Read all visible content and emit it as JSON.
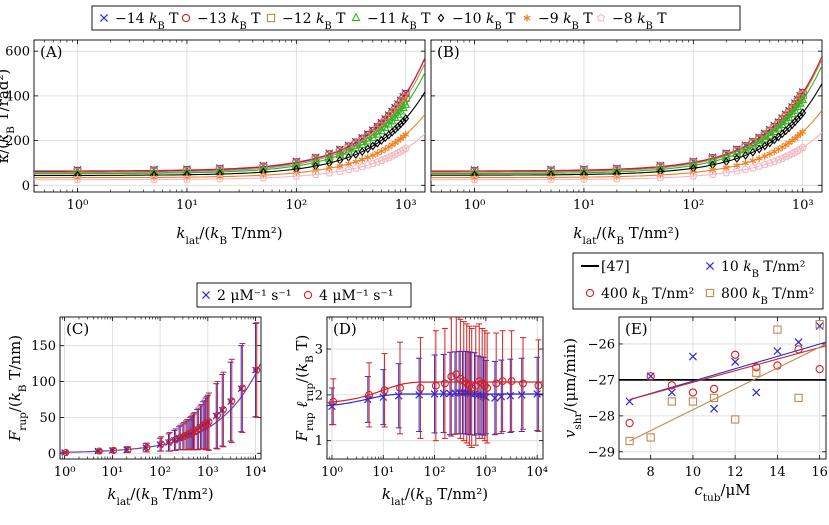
{
  "chart_data": [
    {
      "id": "A",
      "type": "line",
      "panel_label": "(A)",
      "xscale": "log",
      "xlim": [
        0.4,
        1500
      ],
      "ylim": [
        -30,
        650
      ],
      "xticks": [
        1,
        10,
        100,
        1000
      ],
      "xtick_labels": [
        "10⁰",
        "10¹",
        "10²",
        "10³"
      ],
      "yticks": [
        0,
        200,
        400,
        600
      ],
      "ytick_labels": [
        "0",
        "200",
        "400",
        "600"
      ],
      "xlabel": "k_lat/(k_B T/nm²)",
      "ylabel": "κ/(k_B T/rad²)",
      "x": [
        1,
        5,
        10,
        20,
        50,
        100,
        150,
        200,
        250,
        300,
        350,
        400,
        450,
        500,
        550,
        600,
        650,
        700,
        750,
        800,
        850,
        900,
        950,
        1000
      ],
      "series": [
        {
          "name": "−14 k_B T",
          "amp": 84,
          "k0": 400,
          "base": 70,
          "offset": 14,
          "marker": "x",
          "color": "#2b2bd6"
        },
        {
          "name": "−13 k_B T",
          "amp": 84,
          "k0": 400,
          "base": 72,
          "offset": 0,
          "marker": "o",
          "color": "#d62020"
        },
        {
          "name": "−12 k_B T",
          "amp": 81,
          "k0": 400,
          "base": 65,
          "offset": 4,
          "marker": "s",
          "color": "#c08a50"
        },
        {
          "name": "−11 k_B T",
          "amp": 75,
          "k0": 400,
          "base": 60,
          "offset": 0,
          "marker": "^",
          "color": "#22bb22"
        },
        {
          "name": "−10 k_B T",
          "amp": 62,
          "k0": 400,
          "base": 52,
          "offset": 0,
          "marker": "d",
          "color": "#000000"
        },
        {
          "name": "−9 k_B T",
          "amp": 47,
          "k0": 400,
          "base": 42,
          "offset": 0,
          "marker": "*",
          "color": "#f08020"
        },
        {
          "name": "−8 k_B T",
          "amp": 34,
          "k0": 400,
          "base": 33,
          "offset": 0,
          "marker": "p",
          "color": "#f4b8c4"
        }
      ]
    },
    {
      "id": "B",
      "type": "line",
      "panel_label": "(B)",
      "xscale": "log",
      "xlim": [
        0.4,
        1500
      ],
      "ylim": [
        -30,
        650
      ],
      "xticks": [
        1,
        10,
        100,
        1000
      ],
      "xtick_labels": [
        "10⁰",
        "10¹",
        "10²",
        "10³"
      ],
      "yticks": [
        0,
        200,
        400,
        600
      ],
      "ytick_labels": [
        "",
        "",
        "",
        ""
      ],
      "xlabel": "k_lat/(k_B T/nm²)",
      "x": [
        1,
        5,
        10,
        20,
        50,
        100,
        150,
        200,
        250,
        300,
        350,
        400,
        450,
        500,
        550,
        600,
        650,
        700,
        750,
        800,
        850,
        900,
        950,
        1000
      ],
      "series": [
        {
          "name": "−14 k_B T",
          "amp": 85,
          "k0": 400,
          "base": 70,
          "offset": 14,
          "marker": "x",
          "color": "#2b2bd6"
        },
        {
          "name": "−13 k_B T",
          "amp": 85,
          "k0": 400,
          "base": 72,
          "offset": 0,
          "marker": "o",
          "color": "#d62020"
        },
        {
          "name": "−12 k_B T",
          "amp": 84,
          "k0": 400,
          "base": 66,
          "offset": 4,
          "marker": "s",
          "color": "#c08a50"
        },
        {
          "name": "−11 k_B T",
          "amp": 80,
          "k0": 400,
          "base": 60,
          "offset": 0,
          "marker": "^",
          "color": "#22bb22"
        },
        {
          "name": "−10 k_B T",
          "amp": 68,
          "k0": 400,
          "base": 53,
          "offset": 0,
          "marker": "d",
          "color": "#000000"
        },
        {
          "name": "−9 k_B T",
          "amp": 50,
          "k0": 400,
          "base": 42,
          "offset": 0,
          "marker": "*",
          "color": "#f08020"
        },
        {
          "name": "−8 k_B T",
          "amp": 35,
          "k0": 400,
          "base": 33,
          "offset": 0,
          "marker": "p",
          "color": "#f4b8c4"
        }
      ]
    },
    {
      "id": "C",
      "type": "line",
      "panel_label": "(C)",
      "xscale": "log",
      "xlim": [
        0.8,
        13000
      ],
      "ylim": [
        -8,
        190
      ],
      "xticks": [
        1,
        10,
        100,
        1000,
        10000
      ],
      "xtick_labels": [
        "10⁰",
        "10¹",
        "10²",
        "10³",
        "10⁴"
      ],
      "yticks": [
        0,
        50,
        100,
        150
      ],
      "ytick_labels": [
        "0",
        "50",
        "100",
        "150"
      ],
      "xlabel": "k_lat/(k_B T/nm²)",
      "ylabel": "F_rup/(k_B T/nm)",
      "x": [
        1,
        5,
        10,
        20,
        50,
        100,
        150,
        200,
        250,
        300,
        350,
        400,
        450,
        500,
        600,
        700,
        800,
        900,
        1000,
        1500,
        2000,
        3000,
        5000,
        10000
      ],
      "series": [
        {
          "name": "2 μM⁻¹ s⁻¹",
          "marker": "x",
          "color": "#2b2bd6",
          "y": [
            1,
            3,
            4,
            5,
            8,
            12,
            15,
            18,
            21,
            23,
            25,
            26,
            28,
            30,
            33,
            36,
            39,
            41,
            43,
            52,
            60,
            72,
            90,
            116
          ],
          "err": [
            1,
            2,
            3,
            4,
            6,
            9,
            12,
            14,
            16,
            18,
            20,
            21,
            23,
            25,
            28,
            30,
            33,
            36,
            38,
            45,
            50,
            55,
            60,
            65
          ]
        },
        {
          "name": "4 μM⁻¹ s⁻¹",
          "marker": "o",
          "color": "#d62020",
          "y": [
            1,
            3,
            4,
            5,
            8,
            13,
            16,
            19,
            22,
            24,
            26,
            28,
            29,
            31,
            34,
            37,
            40,
            42,
            44,
            53,
            61,
            73,
            91,
            116
          ],
          "err": [
            1,
            2,
            3,
            4,
            6,
            10,
            13,
            15,
            17,
            19,
            21,
            22,
            24,
            26,
            29,
            31,
            34,
            37,
            40,
            47,
            52,
            58,
            62,
            66
          ]
        }
      ],
      "curve": {
        "a": 10,
        "b": 40,
        "color": "#7a3fa0"
      }
    },
    {
      "id": "D",
      "type": "line",
      "panel_label": "(D)",
      "xscale": "log",
      "xlim": [
        0.8,
        13000
      ],
      "ylim": [
        0.6,
        3.7
      ],
      "xticks": [
        1,
        10,
        100,
        1000,
        10000
      ],
      "xtick_labels": [
        "10⁰",
        "10¹",
        "10²",
        "10³",
        "10⁴"
      ],
      "yticks": [
        1,
        2,
        3
      ],
      "ytick_labels": [
        "1",
        "2",
        "3"
      ],
      "xlabel": "k_lat/(k_B T/nm²)",
      "ylabel": "F_rup ℓ_rup/(k_B T)",
      "x": [
        1,
        5,
        10,
        20,
        50,
        100,
        150,
        200,
        250,
        300,
        350,
        400,
        450,
        500,
        600,
        700,
        800,
        900,
        1000,
        1500,
        2000,
        3000,
        5000,
        10000
      ],
      "series": [
        {
          "name": "2 μM⁻¹ s⁻¹",
          "marker": "x",
          "color": "#2b2bd6",
          "y": [
            1.75,
            1.9,
            1.95,
            1.98,
            2.0,
            2.02,
            2.03,
            2.03,
            2.04,
            2.05,
            2.05,
            2.05,
            2.04,
            2.03,
            2.02,
            2.0,
            1.98,
            1.97,
            1.95,
            1.93,
            1.96,
            1.98,
            2.0,
            2.02
          ],
          "err": [
            0.4,
            0.5,
            0.6,
            0.7,
            0.8,
            0.85,
            0.85,
            0.9,
            0.9,
            0.9,
            0.9,
            0.9,
            0.9,
            0.9,
            0.9,
            0.85,
            0.85,
            0.85,
            0.8,
            0.8,
            0.8,
            0.8,
            0.8,
            0.8
          ]
        },
        {
          "name": "4 μM⁻¹ s⁻¹",
          "marker": "o",
          "color": "#d62020",
          "y": [
            1.85,
            2.0,
            2.1,
            2.15,
            2.15,
            2.2,
            2.25,
            2.4,
            2.45,
            2.35,
            2.3,
            2.25,
            2.2,
            2.15,
            2.2,
            2.3,
            2.25,
            2.2,
            2.15,
            2.25,
            2.3,
            2.3,
            2.25,
            2.2
          ],
          "err": [
            0.5,
            0.7,
            0.8,
            1.0,
            1.1,
            1.2,
            1.2,
            1.3,
            1.3,
            1.3,
            1.3,
            1.3,
            1.3,
            1.3,
            1.3,
            1.25,
            1.2,
            1.2,
            1.2,
            1.1,
            1.1,
            1.1,
            1.0,
            1.0
          ]
        }
      ],
      "curves": [
        {
          "color": "#2b2bd6",
          "y0": 1.72,
          "yinf": 2.02,
          "k": 5
        },
        {
          "color": "#d62020",
          "y0": 1.8,
          "yinf": 2.28,
          "k": 10
        }
      ]
    },
    {
      "id": "E",
      "type": "scatter",
      "panel_label": "(E)",
      "xscale": "linear",
      "xlim": [
        6.5,
        16.3
      ],
      "ylim": [
        -29.2,
        -25.25
      ],
      "xticks": [
        8,
        10,
        12,
        14,
        16
      ],
      "xtick_labels": [
        "8",
        "10",
        "12",
        "14",
        "16"
      ],
      "yticks": [
        -29,
        -28,
        -27,
        -26
      ],
      "ytick_labels": [
        "−29",
        "−28",
        "−27",
        "−26"
      ],
      "xlabel": "c_tub/μM",
      "ylabel": "v_shr/(μm/min)",
      "reference": {
        "name": "[47]",
        "y": -27.0,
        "color": "#000000"
      },
      "series": [
        {
          "name": "10 k_B T/nm²",
          "marker": "x",
          "color": "#2b2bd6",
          "x": [
            7,
            8,
            9,
            10,
            11,
            12,
            13,
            14,
            15,
            16
          ],
          "y": [
            -27.6,
            -26.9,
            -27.35,
            -26.35,
            -27.8,
            -26.5,
            -27.35,
            -26.2,
            -25.95,
            -25.5
          ],
          "fit": [
            -27.55,
            -25.95
          ]
        },
        {
          "name": "400 k_B T/nm²",
          "marker": "o",
          "color": "#d62020",
          "x": [
            7,
            8,
            9,
            10,
            11,
            12,
            13,
            14,
            15,
            16
          ],
          "y": [
            -28.2,
            -26.9,
            -27.15,
            -27.35,
            -27.25,
            -26.3,
            -26.65,
            -26.6,
            -26.15,
            -26.7
          ],
          "fit": [
            -27.55,
            -26.05
          ]
        },
        {
          "name": "800 k_B T/nm²",
          "marker": "s",
          "color": "#c08a50",
          "x": [
            7,
            8,
            9,
            10,
            11,
            12,
            13,
            14,
            15,
            16
          ],
          "y": [
            -28.7,
            -28.6,
            -27.6,
            -27.6,
            -27.5,
            -28.1,
            -26.8,
            -25.6,
            -27.5,
            -25.45
          ],
          "fit": [
            -28.7,
            -26.0
          ]
        }
      ]
    }
  ],
  "legends": {
    "top": {
      "entries": [
        {
          "label": "−14 k_B T",
          "marker": "x",
          "color": "#2b2bd6"
        },
        {
          "label": "−13 k_B T",
          "marker": "o",
          "color": "#d62020"
        },
        {
          "label": "−12 k_B T",
          "marker": "s",
          "color": "#c08a50"
        },
        {
          "label": "−11 k_B T",
          "marker": "^",
          "color": "#22bb22"
        },
        {
          "label": "−10 k_B T",
          "marker": "d",
          "color": "#000000"
        },
        {
          "label": "−9 k_B T",
          "marker": "*",
          "color": "#f08020"
        },
        {
          "label": "−8 k_B T",
          "marker": "p",
          "color": "#f4b8c4"
        }
      ]
    },
    "cd": {
      "entries": [
        {
          "label": "2 μM⁻¹ s⁻¹",
          "marker": "x",
          "color": "#2b2bd6"
        },
        {
          "label": "4 μM⁻¹ s⁻¹",
          "marker": "o",
          "color": "#d62020"
        }
      ]
    },
    "e": {
      "entries": [
        {
          "label": "[47]",
          "marker": "line",
          "color": "#000000"
        },
        {
          "label": "10 k_B T/nm²",
          "marker": "x",
          "color": "#2b2bd6"
        },
        {
          "label": "400 k_B T/nm²",
          "marker": "o",
          "color": "#d62020"
        },
        {
          "label": "800 k_B T/nm²",
          "marker": "s",
          "color": "#c08a50"
        }
      ]
    }
  }
}
